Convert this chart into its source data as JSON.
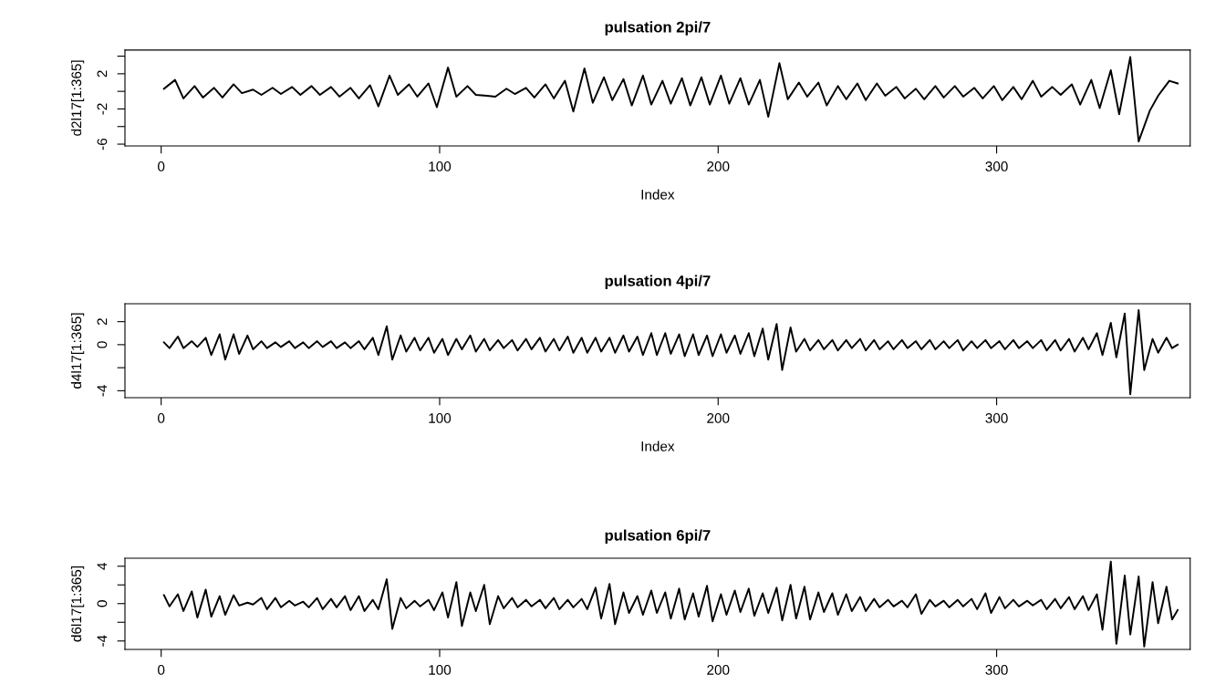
{
  "chart_data": [
    {
      "type": "line",
      "title": "pulsation 2pi/7",
      "xlabel": "Index",
      "ylabel": "d2l17[1:365]",
      "xlim": [
        -13,
        369.5
      ],
      "xticks": [
        0,
        100,
        200,
        300
      ],
      "ylim": [
        -6.2,
        4.7
      ],
      "yticks": [
        {
          "value": 4,
          "label": null
        },
        2,
        {
          "value": 0,
          "label": null
        },
        -2,
        {
          "value": -4,
          "label": null
        },
        -6
      ],
      "grid": false,
      "series": [
        {
          "color": "#000000",
          "x": [
            1,
            5,
            8,
            12,
            15,
            19,
            22,
            26,
            29,
            33,
            36,
            40,
            43,
            47,
            50,
            54,
            57,
            61,
            64,
            68,
            71,
            75,
            78,
            82,
            85,
            89,
            92,
            96,
            99,
            103,
            106,
            110,
            113,
            117,
            120,
            124,
            127,
            131,
            134,
            138,
            141,
            145,
            148,
            152,
            155,
            159,
            162,
            166,
            169,
            173,
            176,
            180,
            183,
            187,
            190,
            194,
            197,
            201,
            204,
            208,
            211,
            215,
            218,
            222,
            225,
            229,
            232,
            236,
            239,
            243,
            246,
            250,
            253,
            257,
            260,
            264,
            267,
            271,
            274,
            278,
            281,
            285,
            288,
            292,
            295,
            299,
            302,
            306,
            309,
            313,
            316,
            320,
            323,
            327,
            330,
            334,
            337,
            341,
            344,
            348,
            351,
            355,
            358,
            362,
            365
          ],
          "values": [
            0.3,
            1.3,
            -0.8,
            0.6,
            -0.7,
            0.4,
            -0.7,
            0.8,
            -0.2,
            0.2,
            -0.4,
            0.4,
            -0.3,
            0.5,
            -0.4,
            0.6,
            -0.4,
            0.5,
            -0.6,
            0.4,
            -0.8,
            0.7,
            -1.7,
            1.8,
            -0.4,
            0.8,
            -0.6,
            0.9,
            -1.8,
            2.7,
            -0.6,
            0.6,
            -0.4,
            -0.5,
            -0.6,
            0.3,
            -0.3,
            0.4,
            -0.7,
            0.8,
            -0.8,
            1.2,
            -2.3,
            2.6,
            -1.3,
            1.6,
            -1.0,
            1.4,
            -1.6,
            1.8,
            -1.5,
            1.2,
            -1.4,
            1.5,
            -1.6,
            1.6,
            -1.5,
            1.8,
            -1.4,
            1.5,
            -1.5,
            1.3,
            -2.9,
            3.2,
            -0.9,
            1.0,
            -0.6,
            1.0,
            -1.6,
            0.6,
            -0.9,
            0.9,
            -1.0,
            0.9,
            -0.5,
            0.5,
            -0.8,
            0.3,
            -0.9,
            0.6,
            -0.7,
            0.6,
            -0.6,
            0.4,
            -0.8,
            0.6,
            -1.0,
            0.5,
            -0.9,
            1.2,
            -0.6,
            0.5,
            -0.4,
            0.8,
            -1.5,
            1.3,
            -1.9,
            2.4,
            -2.6,
            3.9,
            -5.7,
            -2.2,
            -0.5,
            1.2,
            0.9
          ]
        }
      ]
    },
    {
      "type": "line",
      "title": "pulsation 4pi/7",
      "xlabel": "Index",
      "ylabel": "d4l17[1:365]",
      "xlim": [
        -13,
        369.5
      ],
      "xticks": [
        0,
        100,
        200,
        300
      ],
      "ylim": [
        -4.6,
        3.55
      ],
      "yticks": [
        2,
        0,
        {
          "value": -2,
          "label": null
        },
        -4
      ],
      "grid": false,
      "series": [
        {
          "color": "#000000",
          "x": [
            1,
            3,
            6,
            8,
            11,
            13,
            16,
            18,
            21,
            23,
            26,
            28,
            31,
            33,
            36,
            38,
            41,
            43,
            46,
            48,
            51,
            53,
            56,
            58,
            61,
            63,
            66,
            68,
            71,
            73,
            76,
            78,
            81,
            83,
            86,
            88,
            91,
            93,
            96,
            98,
            101,
            103,
            106,
            108,
            111,
            113,
            116,
            118,
            121,
            123,
            126,
            128,
            131,
            133,
            136,
            138,
            141,
            143,
            146,
            148,
            151,
            153,
            156,
            158,
            161,
            163,
            166,
            168,
            171,
            173,
            176,
            178,
            181,
            183,
            186,
            188,
            191,
            193,
            196,
            198,
            201,
            203,
            206,
            208,
            211,
            213,
            216,
            218,
            221,
            223,
            226,
            228,
            231,
            233,
            236,
            238,
            241,
            243,
            246,
            248,
            251,
            253,
            256,
            258,
            261,
            263,
            266,
            268,
            271,
            273,
            276,
            278,
            281,
            283,
            286,
            288,
            291,
            293,
            296,
            298,
            301,
            303,
            306,
            308,
            311,
            313,
            316,
            318,
            321,
            323,
            326,
            328,
            331,
            333,
            336,
            338,
            341,
            343,
            346,
            348,
            351,
            353,
            356,
            358,
            361,
            363,
            365
          ],
          "values": [
            0.2,
            -0.3,
            0.7,
            -0.3,
            0.3,
            -0.2,
            0.6,
            -0.9,
            0.9,
            -1.3,
            0.9,
            -0.8,
            0.8,
            -0.4,
            0.3,
            -0.3,
            0.2,
            -0.2,
            0.3,
            -0.3,
            0.2,
            -0.3,
            0.3,
            -0.2,
            0.3,
            -0.3,
            0.2,
            -0.3,
            0.3,
            -0.4,
            0.6,
            -0.9,
            1.6,
            -1.3,
            0.8,
            -0.6,
            0.6,
            -0.5,
            0.6,
            -0.7,
            0.5,
            -0.9,
            0.5,
            -0.4,
            0.8,
            -0.6,
            0.5,
            -0.5,
            0.4,
            -0.3,
            0.4,
            -0.5,
            0.5,
            -0.4,
            0.6,
            -0.6,
            0.5,
            -0.5,
            0.7,
            -0.7,
            0.6,
            -0.7,
            0.6,
            -0.6,
            0.6,
            -0.7,
            0.8,
            -0.6,
            0.7,
            -0.9,
            1.0,
            -0.9,
            1.0,
            -0.8,
            0.9,
            -1.0,
            0.9,
            -0.9,
            0.8,
            -1.0,
            0.9,
            -0.7,
            0.8,
            -0.8,
            1.0,
            -1.0,
            1.4,
            -1.3,
            1.8,
            -2.2,
            1.5,
            -0.6,
            0.5,
            -0.5,
            0.4,
            -0.4,
            0.4,
            -0.5,
            0.4,
            -0.3,
            0.5,
            -0.5,
            0.4,
            -0.4,
            0.3,
            -0.4,
            0.4,
            -0.3,
            0.3,
            -0.4,
            0.4,
            -0.4,
            0.3,
            -0.3,
            0.4,
            -0.5,
            0.3,
            -0.3,
            0.4,
            -0.3,
            0.3,
            -0.4,
            0.4,
            -0.3,
            0.3,
            -0.3,
            0.4,
            -0.5,
            0.4,
            -0.5,
            0.5,
            -0.6,
            0.6,
            -0.4,
            1.0,
            -0.9,
            1.9,
            -1.1,
            2.7,
            -4.3,
            3.0,
            -2.2,
            0.5,
            -0.7,
            0.6,
            -0.3,
            0.0
          ]
        }
      ]
    },
    {
      "type": "line",
      "title": "pulsation 6pi/7",
      "ylabel": "d6l17[1:365]",
      "xlim": [
        -13,
        369.5
      ],
      "xticks": [
        0,
        100,
        200,
        300
      ],
      "ylim": [
        -4.9,
        4.85
      ],
      "yticks": [
        4,
        {
          "value": 2,
          "label": null
        },
        0,
        {
          "value": -2,
          "label": null
        },
        -4
      ],
      "grid": false,
      "series": [
        {
          "color": "#000000",
          "x": [
            1,
            3,
            6,
            8,
            11,
            13,
            16,
            18,
            21,
            23,
            26,
            28,
            31,
            33,
            36,
            38,
            41,
            43,
            46,
            48,
            51,
            53,
            56,
            58,
            61,
            63,
            66,
            68,
            71,
            73,
            76,
            78,
            81,
            83,
            86,
            88,
            91,
            93,
            96,
            98,
            101,
            103,
            106,
            108,
            111,
            113,
            116,
            118,
            121,
            123,
            126,
            128,
            131,
            133,
            136,
            138,
            141,
            143,
            146,
            148,
            151,
            153,
            156,
            158,
            161,
            163,
            166,
            168,
            171,
            173,
            176,
            178,
            181,
            183,
            186,
            188,
            191,
            193,
            196,
            198,
            201,
            203,
            206,
            208,
            211,
            213,
            216,
            218,
            221,
            223,
            226,
            228,
            231,
            233,
            236,
            238,
            241,
            243,
            246,
            248,
            251,
            253,
            256,
            258,
            261,
            263,
            266,
            268,
            271,
            273,
            276,
            278,
            281,
            283,
            286,
            288,
            291,
            293,
            296,
            298,
            301,
            303,
            306,
            308,
            311,
            313,
            316,
            318,
            321,
            323,
            326,
            328,
            331,
            333,
            336,
            338,
            341,
            343,
            346,
            348,
            351,
            353,
            356,
            358,
            361,
            363,
            365
          ],
          "values": [
            0.9,
            -0.3,
            1.0,
            -0.8,
            1.3,
            -1.5,
            1.5,
            -1.4,
            0.8,
            -1.2,
            0.9,
            -0.2,
            0.1,
            -0.1,
            0.6,
            -0.6,
            0.6,
            -0.4,
            0.3,
            -0.2,
            0.2,
            -0.4,
            0.6,
            -0.6,
            0.5,
            -0.4,
            0.8,
            -0.7,
            0.8,
            -0.8,
            0.4,
            -0.6,
            2.6,
            -2.7,
            0.6,
            -0.5,
            0.3,
            -0.3,
            0.4,
            -0.7,
            1.2,
            -1.5,
            2.3,
            -2.4,
            1.2,
            -0.8,
            2.0,
            -2.2,
            0.8,
            -0.5,
            0.6,
            -0.4,
            0.4,
            -0.3,
            0.4,
            -0.5,
            0.6,
            -0.6,
            0.4,
            -0.4,
            0.5,
            -0.6,
            1.7,
            -1.6,
            2.1,
            -2.2,
            1.2,
            -1.0,
            0.8,
            -1.2,
            1.4,
            -1.0,
            1.2,
            -1.6,
            1.6,
            -1.7,
            1.1,
            -1.4,
            1.9,
            -1.9,
            1.0,
            -1.2,
            1.4,
            -0.9,
            1.6,
            -1.3,
            1.1,
            -1.0,
            1.7,
            -1.8,
            2.0,
            -1.6,
            1.8,
            -1.7,
            1.2,
            -0.9,
            1.1,
            -1.2,
            1.0,
            -0.8,
            0.7,
            -0.8,
            0.5,
            -0.4,
            0.4,
            -0.3,
            0.3,
            -0.4,
            1.0,
            -1.1,
            0.4,
            -0.3,
            0.3,
            -0.4,
            0.4,
            -0.3,
            0.5,
            -0.6,
            1.1,
            -1.0,
            0.7,
            -0.5,
            0.4,
            -0.3,
            0.3,
            -0.2,
            0.4,
            -0.6,
            0.5,
            -0.5,
            0.7,
            -0.6,
            0.8,
            -0.7,
            1.0,
            -2.8,
            4.5,
            -4.3,
            3.0,
            -3.3,
            2.9,
            -4.6,
            2.3,
            -2.1,
            1.8,
            -1.7,
            -0.7
          ]
        }
      ]
    }
  ]
}
